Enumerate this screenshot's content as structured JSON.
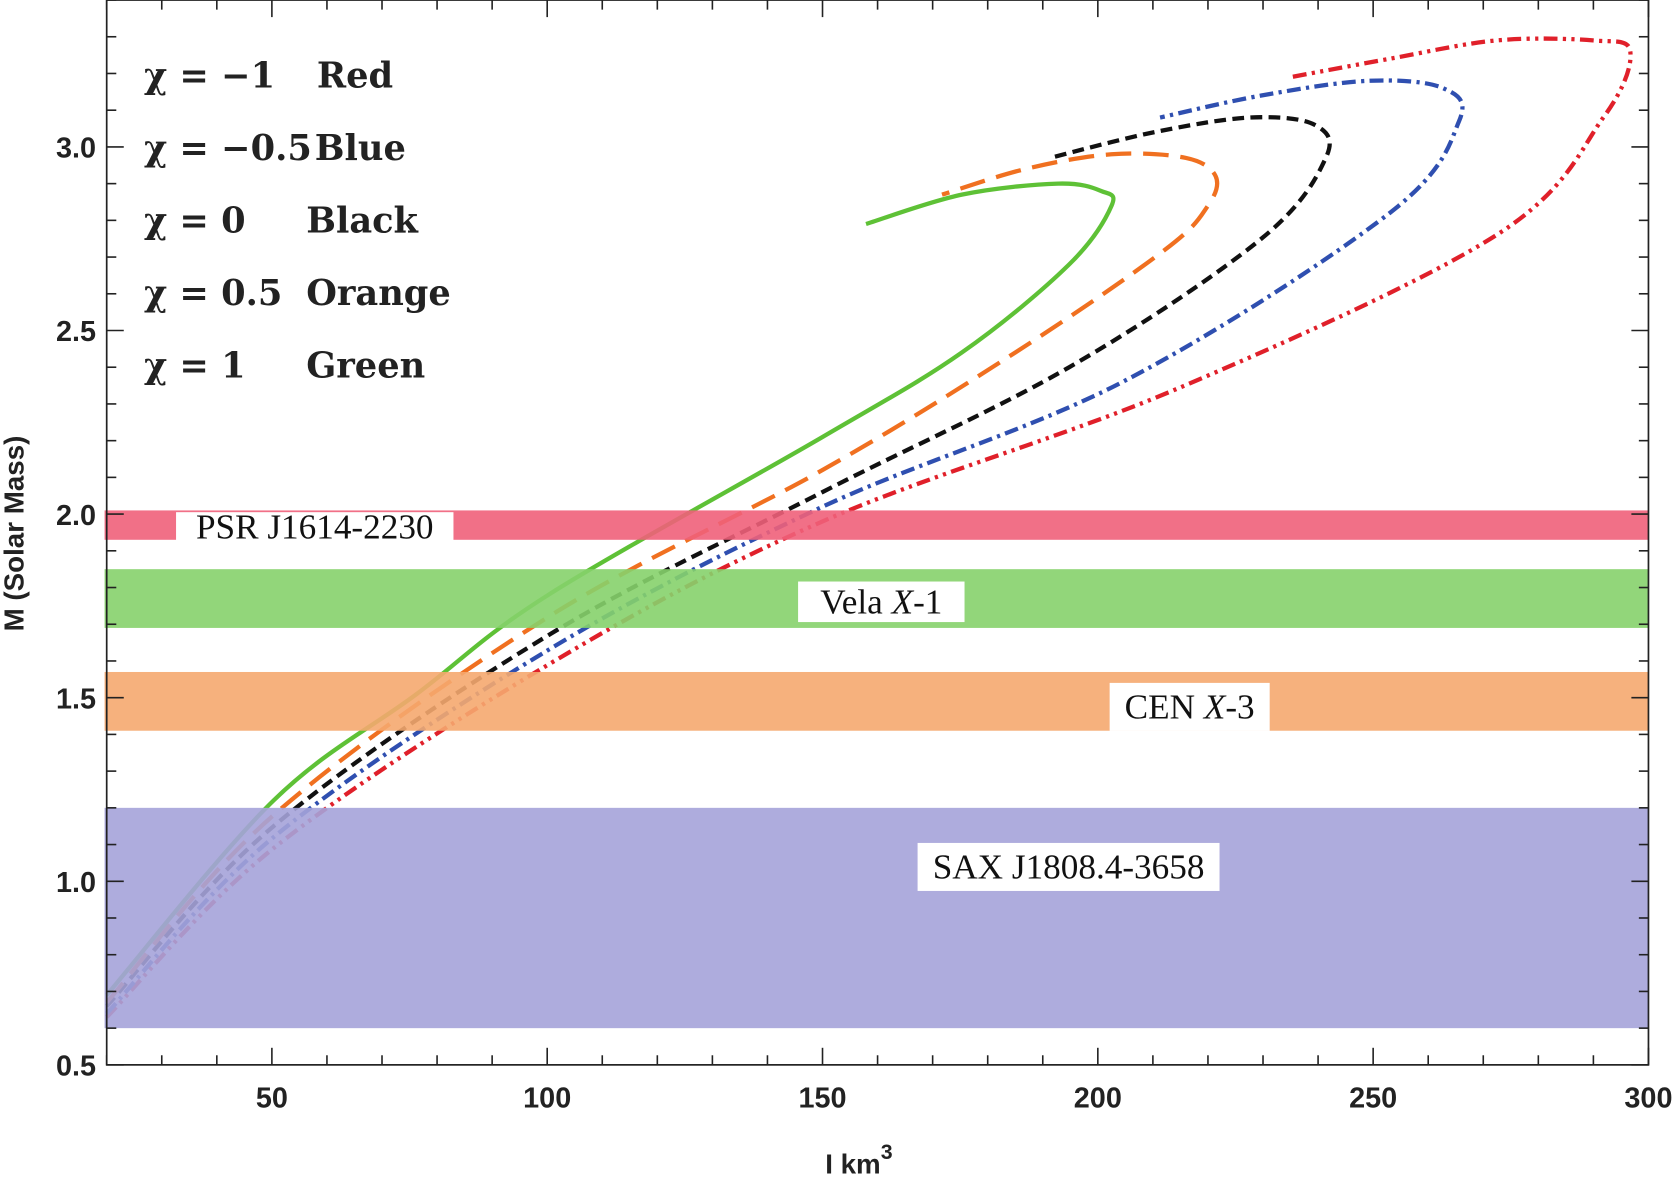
{
  "chart_data": {
    "type": "line",
    "title": "",
    "xlabel": "I km",
    "xlabel_superscript": "3",
    "ylabel": "M (Solar Mass)",
    "xlim": [
      20,
      300
    ],
    "ylim": [
      0.5,
      3.4
    ],
    "x_ticks": [
      "50",
      "100",
      "150",
      "200",
      "250",
      "300"
    ],
    "y_ticks": [
      "0.5",
      "1.0",
      "1.5",
      "2.0",
      "2.5",
      "3.0"
    ],
    "grid": false,
    "legend_placement": "top-left",
    "legend": [
      {
        "label": "χ = −1",
        "color_name": "Red"
      },
      {
        "label": "χ = −0.5",
        "color_name": "Blue"
      },
      {
        "label": "χ = 0",
        "color_name": "Black"
      },
      {
        "label": "χ = 0.5",
        "color_name": "Orange"
      },
      {
        "label": "χ = 1",
        "color_name": "Green"
      }
    ],
    "series": [
      {
        "chi": -1,
        "color": "#e0202a",
        "style": "dash-dot-dot",
        "points": [
          [
            20,
            0.63
          ],
          [
            50.3,
            1.09
          ],
          [
            100.2,
            1.59
          ],
          [
            150,
            1.98
          ],
          [
            214.2,
            2.34
          ],
          [
            272.4,
            2.76
          ],
          [
            291.8,
            3.08
          ],
          [
            296.7,
            3.26
          ],
          [
            289.9,
            3.29
          ],
          [
            272.4,
            3.29
          ],
          [
            253,
            3.24
          ],
          [
            235,
            3.19
          ]
        ]
      },
      {
        "chi": -0.5,
        "color": "#2f4fb0",
        "style": "dash-dot",
        "points": [
          [
            20,
            0.64
          ],
          [
            50.3,
            1.12
          ],
          [
            100.2,
            1.63
          ],
          [
            150,
            2.02
          ],
          [
            204.5,
            2.36
          ],
          [
            253,
            2.82
          ],
          [
            265.6,
            3.07
          ],
          [
            262.7,
            3.16
          ],
          [
            249.1,
            3.18
          ],
          [
            229.7,
            3.14
          ],
          [
            211.3,
            3.08
          ]
        ]
      },
      {
        "chi": 0,
        "color": "#111111",
        "style": "dashed",
        "points": [
          [
            20,
            0.66
          ],
          [
            50.3,
            1.15
          ],
          [
            100.2,
            1.67
          ],
          [
            150,
            2.06
          ],
          [
            194.8,
            2.4
          ],
          [
            229.7,
            2.75
          ],
          [
            241.4,
            2.97
          ],
          [
            239.4,
            3.06
          ],
          [
            227.7,
            3.08
          ],
          [
            210.2,
            3.04
          ],
          [
            191.3,
            2.97
          ]
        ]
      },
      {
        "chi": 0.5,
        "color": "#f07020",
        "style": "long-dash",
        "points": [
          [
            20,
            0.67
          ],
          [
            50.3,
            1.18
          ],
          [
            100.2,
            1.72
          ],
          [
            150,
            2.12
          ],
          [
            185,
            2.44
          ],
          [
            212.2,
            2.72
          ],
          [
            220,
            2.84
          ],
          [
            221.4,
            2.92
          ],
          [
            216,
            2.97
          ],
          [
            202.5,
            2.98
          ],
          [
            186.9,
            2.94
          ],
          [
            171.7,
            2.87
          ]
        ]
      },
      {
        "chi": 1,
        "color": "#5ec136",
        "style": "solid",
        "points": [
          [
            20,
            0.69
          ],
          [
            50.3,
            1.22
          ],
          [
            76.3,
            1.51
          ],
          [
            100.2,
            1.78
          ],
          [
            150,
            2.21
          ],
          [
            175.3,
            2.44
          ],
          [
            194.8,
            2.68
          ],
          [
            202.5,
            2.84
          ],
          [
            200.6,
            2.88
          ],
          [
            192.8,
            2.9
          ],
          [
            175.3,
            2.87
          ],
          [
            157.9,
            2.79
          ]
        ]
      }
    ],
    "bands": [
      {
        "label": "PSR J1614-2230",
        "ymin": 1.93,
        "ymax": 2.01,
        "color": "#f0607a"
      },
      {
        "label": "Vela X-1",
        "label_parts": [
          "Vela ",
          "X",
          "-1"
        ],
        "ymin": 1.69,
        "ymax": 1.85,
        "color": "#86d16c"
      },
      {
        "label": "CEN X-3",
        "label_parts": [
          "CEN ",
          "X",
          "-3"
        ],
        "ymin": 1.41,
        "ymax": 1.57,
        "color": "#f5a86f"
      },
      {
        "label": "SAX J1808.4-3658",
        "ymin": 0.6,
        "ymax": 1.2,
        "color": "#a5a3d9"
      }
    ]
  }
}
